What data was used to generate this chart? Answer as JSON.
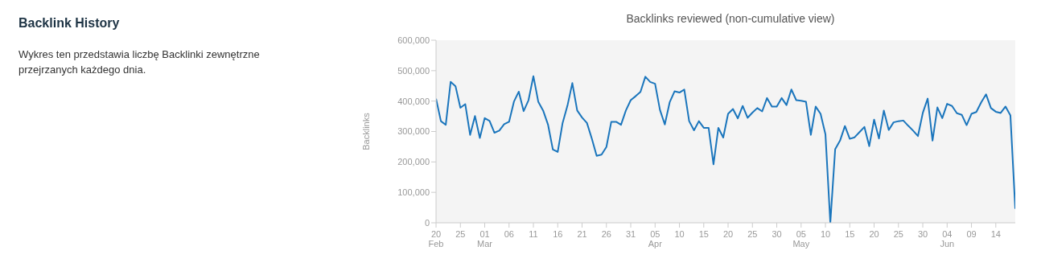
{
  "chart_data": {
    "type": "line",
    "title": "Backlinks reviewed (non-cumulative view)",
    "ylabel": "Backlinks",
    "annotations": [
      "Backlink History",
      "Wykres ten przedstawia liczbę Backlinki zewnętrzne przejrzanych każdego dnia."
    ],
    "x": [
      "--02-20",
      "--02-21",
      "--02-22",
      "--02-23",
      "--02-24",
      "--02-25",
      "--02-26",
      "--02-27",
      "--02-28",
      "--02-29",
      "--03-01",
      "--03-02",
      "--03-03",
      "--03-04",
      "--03-05",
      "--03-06",
      "--03-07",
      "--03-08",
      "--03-09",
      "--03-10",
      "--03-11",
      "--03-12",
      "--03-13",
      "--03-14",
      "--03-15",
      "--03-16",
      "--03-17",
      "--03-18",
      "--03-19",
      "--03-20",
      "--03-21",
      "--03-22",
      "--03-23",
      "--03-24",
      "--03-25",
      "--03-26",
      "--03-27",
      "--03-28",
      "--03-29",
      "--03-30",
      "--03-31",
      "--04-01",
      "--04-02",
      "--04-03",
      "--04-04",
      "--04-05",
      "--04-06",
      "--04-07",
      "--04-08",
      "--04-09",
      "--04-10",
      "--04-11",
      "--04-12",
      "--04-13",
      "--04-14",
      "--04-15",
      "--04-16",
      "--04-17",
      "--04-18",
      "--04-19",
      "--04-20",
      "--04-21",
      "--04-22",
      "--04-23",
      "--04-24",
      "--04-25",
      "--04-26",
      "--04-27",
      "--04-28",
      "--04-29",
      "--04-30",
      "--05-01",
      "--05-02",
      "--05-03",
      "--05-04",
      "--05-05",
      "--05-06",
      "--05-07",
      "--05-08",
      "--05-09",
      "--05-10",
      "--05-11",
      "--05-12",
      "--05-13",
      "--05-14",
      "--05-15",
      "--05-16",
      "--05-17",
      "--05-18",
      "--05-19",
      "--05-20",
      "--05-21",
      "--05-22",
      "--05-23",
      "--05-24",
      "--05-25",
      "--05-26",
      "--05-27",
      "--05-28",
      "--05-29",
      "--05-30",
      "--05-31",
      "--06-01",
      "--06-02",
      "--06-03",
      "--06-04",
      "--06-05",
      "--06-06",
      "--06-07",
      "--06-08",
      "--06-09",
      "--06-10",
      "--06-11",
      "--06-12",
      "--06-13",
      "--06-14",
      "--06-15",
      "--06-16",
      "--06-17",
      "--06-18"
    ],
    "series": [
      {
        "color": "#1a75bc",
        "values": [
          408000,
          334000,
          322000,
          463000,
          449000,
          378000,
          390000,
          289000,
          351000,
          279000,
          344000,
          335000,
          296000,
          303000,
          324000,
          332000,
          398000,
          431000,
          367000,
          403000,
          482000,
          398000,
          369000,
          323000,
          241000,
          233000,
          328000,
          385000,
          459000,
          369000,
          346000,
          328000,
          277000,
          220000,
          224000,
          249000,
          332000,
          332000,
          322000,
          369000,
          403000,
          416000,
          430000,
          480000,
          463000,
          457000,
          371000,
          323000,
          396000,
          432000,
          428000,
          438000,
          334000,
          304000,
          334000,
          312000,
          312000,
          192000,
          312000,
          280000,
          358000,
          374000,
          343000,
          384000,
          345000,
          362000,
          377000,
          366000,
          410000,
          382000,
          382000,
          410000,
          387000,
          438000,
          403000,
          401000,
          398000,
          289000,
          382000,
          358000,
          291000,
          0,
          242000,
          270000,
          318000,
          276000,
          281000,
          298000,
          315000,
          252000,
          339000,
          277000,
          369000,
          305000,
          330000,
          334000,
          336000,
          319000,
          303000,
          285000,
          361000,
          408000,
          270000,
          379000,
          344000,
          391000,
          384000,
          360000,
          355000,
          321000,
          358000,
          364000,
          396000,
          422000,
          377000,
          365000,
          361000,
          382000,
          353000,
          46000
        ]
      }
    ],
    "xlim": [
      "--02-20",
      "--06-18"
    ],
    "xticks": [
      {
        "value": "--02-20",
        "label": "20\nFeb"
      },
      {
        "value": "--02-25",
        "label": "25"
      },
      {
        "value": "--03-01",
        "label": "01\nMar"
      },
      {
        "value": "--03-06",
        "label": "06"
      },
      {
        "value": "--03-11",
        "label": "11"
      },
      {
        "value": "--03-16",
        "label": "16"
      },
      {
        "value": "--03-21",
        "label": "21"
      },
      {
        "value": "--03-26",
        "label": "26"
      },
      {
        "value": "--03-31",
        "label": "31"
      },
      {
        "value": "--04-05",
        "label": "05\nApr"
      },
      {
        "value": "--04-10",
        "label": "10"
      },
      {
        "value": "--04-15",
        "label": "15"
      },
      {
        "value": "--04-20",
        "label": "20"
      },
      {
        "value": "--04-25",
        "label": "25"
      },
      {
        "value": "--04-30",
        "label": "30"
      },
      {
        "value": "--05-05",
        "label": "05\nMay"
      },
      {
        "value": "--05-10",
        "label": "10"
      },
      {
        "value": "--05-15",
        "label": "15"
      },
      {
        "value": "--05-20",
        "label": "20"
      },
      {
        "value": "--05-25",
        "label": "25"
      },
      {
        "value": "--05-30",
        "label": "30"
      },
      {
        "value": "--06-04",
        "label": "04\nJun"
      },
      {
        "value": "--06-09",
        "label": "09"
      },
      {
        "value": "--06-14",
        "label": "14"
      }
    ],
    "ylim": [
      0,
      600000
    ],
    "yticks": [
      {
        "value": 0,
        "label": "0"
      },
      {
        "value": 100000,
        "label": "100,000"
      },
      {
        "value": 200000,
        "label": "200,000"
      },
      {
        "value": 300000,
        "label": "300,000"
      },
      {
        "value": 400000,
        "label": "400,000"
      },
      {
        "value": 500000,
        "label": "500,000"
      },
      {
        "value": 600000,
        "label": "600,000"
      }
    ],
    "grid": false,
    "marker": "none",
    "line_style": "solid"
  }
}
